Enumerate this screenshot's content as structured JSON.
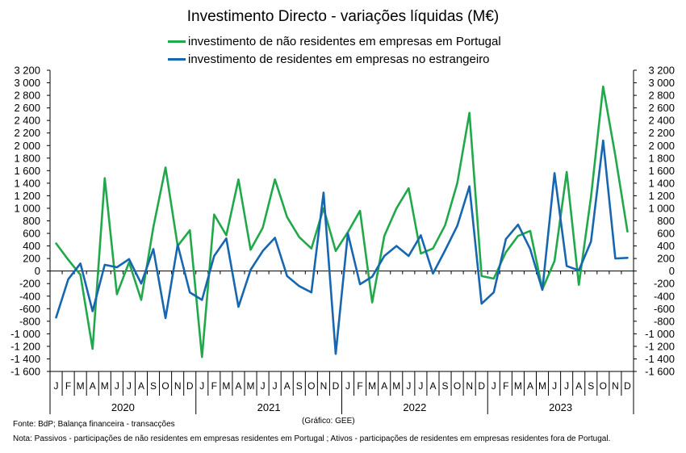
{
  "chart_data": {
    "type": "line",
    "title": "Investimento Directo - variações líquidas (M€)",
    "x": [
      "J",
      "F",
      "M",
      "A",
      "M",
      "J",
      "J",
      "A",
      "S",
      "O",
      "N",
      "D",
      "J",
      "F",
      "M",
      "A",
      "M",
      "J",
      "J",
      "A",
      "S",
      "O",
      "N",
      "D",
      "J",
      "F",
      "M",
      "A",
      "M",
      "J",
      "J",
      "A",
      "S",
      "O",
      "N",
      "D",
      "J",
      "F",
      "M",
      "A",
      "M",
      "J",
      "J",
      "A",
      "S",
      "O",
      "N",
      "D"
    ],
    "years": [
      "2020",
      "2021",
      "2022",
      "2023"
    ],
    "ylim": [
      -1600,
      3200
    ],
    "yticks": [
      "-1 600",
      "-1 400",
      "-1 200",
      "-1 000",
      "-800",
      "-600",
      "-400",
      "-200",
      "0",
      "200",
      "400",
      "600",
      "800",
      "1 000",
      "1 200",
      "1 400",
      "1 600",
      "1 800",
      "2 000",
      "2 200",
      "2 400",
      "2 600",
      "2 800",
      "3 000",
      "3 200"
    ],
    "grid": false,
    "legend_position": "top",
    "series": [
      {
        "name": "investimento de não residentes em empresas em Portugal",
        "color": "#21a84a",
        "values": [
          440,
          180,
          -60,
          -1240,
          1480,
          -370,
          140,
          -460,
          700,
          1650,
          400,
          650,
          -1370,
          900,
          570,
          1460,
          340,
          690,
          1460,
          860,
          540,
          360,
          1000,
          320,
          620,
          960,
          -500,
          560,
          1000,
          1320,
          280,
          360,
          730,
          1400,
          2520,
          -80,
          -120,
          300,
          560,
          640,
          -290,
          160,
          1580,
          -220,
          1180,
          2940,
          1840,
          630
        ]
      },
      {
        "name": "investimento de residentes em empresas no estrangeiro",
        "color": "#1666b0",
        "values": [
          -740,
          -130,
          120,
          -640,
          100,
          60,
          190,
          -200,
          350,
          -750,
          420,
          -340,
          -460,
          240,
          520,
          -570,
          20,
          320,
          530,
          -80,
          -240,
          -340,
          1250,
          -1320,
          600,
          -210,
          -90,
          240,
          400,
          240,
          570,
          -40,
          330,
          720,
          1350,
          -520,
          -340,
          510,
          740,
          350,
          -300,
          1560,
          80,
          10,
          470,
          2080,
          200,
          210
        ]
      }
    ],
    "source_note": "Fonte: BdP; Balança financeira - transacções",
    "graphic_note": "(Gráfico: GEE)",
    "note": "Nota: Passivos - participações de não residentes em empresas residentes em Portugal ; Ativos - participações de residentes em empresas residentes fora de Portugal."
  }
}
